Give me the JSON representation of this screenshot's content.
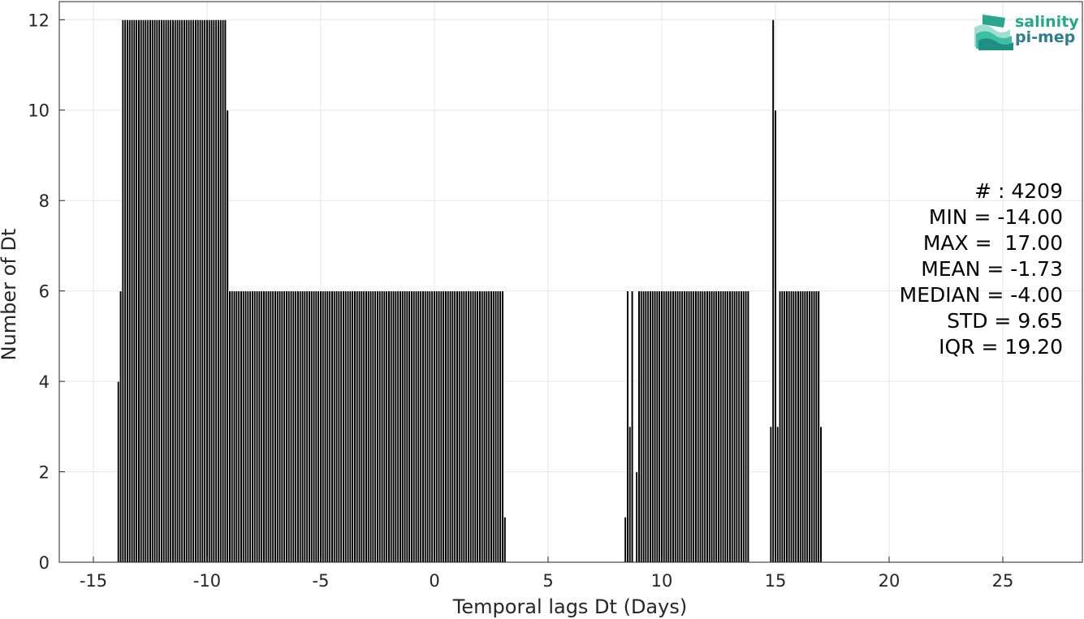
{
  "chart_data": {
    "type": "bar",
    "xlabel": "Temporal lags Dt (Days)",
    "ylabel": "Number of Dt",
    "xlim": [
      -16.5,
      28.5
    ],
    "ylim": [
      0,
      12.4
    ],
    "xticks": [
      "-15",
      "-10",
      "-5",
      "0",
      "5",
      "10",
      "15",
      "20",
      "25"
    ],
    "yticks": [
      "0",
      "2",
      "4",
      "6",
      "8",
      "10",
      "12"
    ],
    "grid": true,
    "bar_color": "#000000",
    "bin_width": 0.1,
    "segments": [
      {
        "start": -13.95,
        "end": -13.85,
        "value": 4
      },
      {
        "start": -13.85,
        "end": -13.75,
        "value": 6
      },
      {
        "start": -13.75,
        "end": -9.15,
        "value": 12
      },
      {
        "start": -9.15,
        "end": -9.05,
        "value": 10
      },
      {
        "start": -9.05,
        "end": 3.05,
        "value": 6
      },
      {
        "start": 3.05,
        "end": 3.15,
        "value": 1
      },
      {
        "start": 8.35,
        "end": 8.45,
        "value": 1
      },
      {
        "start": 8.45,
        "end": 8.55,
        "value": 6
      },
      {
        "start": 8.55,
        "end": 8.65,
        "value": 3
      },
      {
        "start": 8.65,
        "end": 8.75,
        "value": 6
      },
      {
        "start": 8.85,
        "end": 8.95,
        "value": 2
      },
      {
        "start": 8.95,
        "end": 13.85,
        "value": 6
      },
      {
        "start": 14.75,
        "end": 14.85,
        "value": 3
      },
      {
        "start": 14.85,
        "end": 14.95,
        "value": 12
      },
      {
        "start": 14.95,
        "end": 15.05,
        "value": 10
      },
      {
        "start": 15.05,
        "end": 15.15,
        "value": 3
      },
      {
        "start": 15.15,
        "end": 16.95,
        "value": 6
      },
      {
        "start": 16.95,
        "end": 17.05,
        "value": 3
      }
    ],
    "stats": [
      "# : 4209",
      "MIN = -14.00",
      "MAX =  17.00",
      "MEAN = -1.73",
      "MEDIAN = -4.00",
      "STD = 9.65",
      "IQR = 19.20"
    ],
    "legend": "right"
  },
  "logo": {
    "line1": "salinity",
    "line2": "pi-mep",
    "colors": [
      "#22a88a",
      "#2d7d8c"
    ]
  }
}
